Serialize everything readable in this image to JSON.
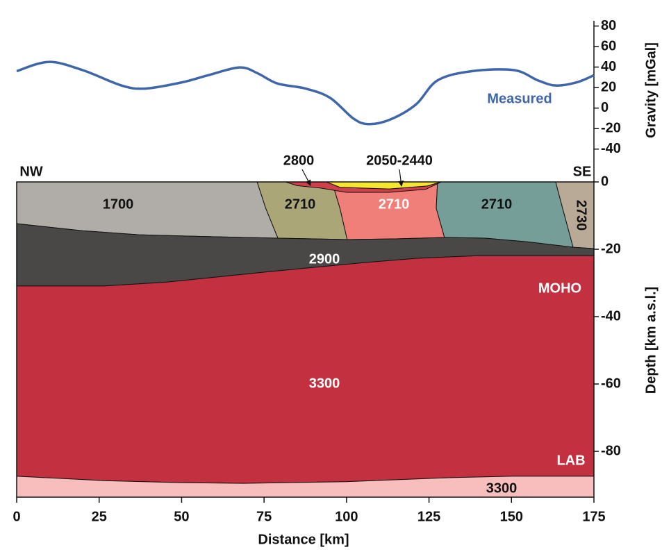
{
  "chart_data": [
    {
      "type": "line",
      "ylabel": "Gravity [mGal]",
      "xlim": [
        0,
        175
      ],
      "ylim": [
        -72,
        102
      ],
      "yticks": [
        80,
        60,
        40,
        20,
        0,
        -20,
        -40
      ],
      "x": [
        0,
        9.7,
        20,
        31.8,
        39,
        50,
        58,
        67.6,
        73,
        79,
        87.6,
        95,
        102,
        106.5,
        113,
        121,
        127.6,
        138,
        150.8,
        158,
        163.4,
        169.7,
        175
      ],
      "series": [
        {
          "name": "Measured",
          "color": "#3f66a8",
          "values": [
            36,
            45,
            37,
            22,
            19,
            25,
            32,
            39.6,
            34,
            24,
            19,
            10,
            -10,
            -15.6,
            -11.5,
            3.4,
            27,
            36,
            37,
            27,
            22,
            25,
            32
          ]
        }
      ]
    },
    {
      "type": "section",
      "xlabel": "Distance [km]",
      "ylabel": "Depth [km a.s.l.]",
      "xlim": [
        0,
        175
      ],
      "xticks": [
        0,
        25,
        50,
        75,
        100,
        125,
        150,
        175
      ],
      "ylim": [
        -93.6,
        0
      ],
      "yticks": [
        0,
        -20,
        -40,
        -60,
        -80
      ],
      "annotations": [
        "NW",
        "SE",
        "MOHO",
        "LAB"
      ],
      "bodies": [
        {
          "label": "1700",
          "color": "#b0aca8",
          "label_color": "#111111",
          "x": [
            0,
            72.9,
            75.5,
            79.2,
            60,
            37,
            20,
            0
          ],
          "y": [
            0,
            0,
            -7.8,
            -16.7,
            -16.3,
            -15.7,
            -14.5,
            -12.4
          ]
        },
        {
          "label": "2710",
          "color": "#aaa678",
          "label_color": "#111111",
          "x": [
            72.9,
            95.6,
            98,
            100.2,
            79.2,
            75.5
          ],
          "y": [
            0,
            0,
            -7.8,
            -17.1,
            -16.7,
            -7.8
          ]
        },
        {
          "label": "2710",
          "color": "#f07e79",
          "label_color": "#ffffff",
          "x": [
            95.6,
            127.6,
            127.2,
            129.7,
            115,
            100.2,
            98
          ],
          "y": [
            0,
            0,
            -7.8,
            -16.5,
            -16.9,
            -17.1,
            -7.8
          ]
        },
        {
          "label": "2710",
          "color": "#769e98",
          "label_color": "#111111",
          "x": [
            127.6,
            163.4,
            165.5,
            168.7,
            155,
            142,
            129.7,
            127.2
          ],
          "y": [
            0,
            0,
            -7.8,
            -19.4,
            -17.8,
            -16.7,
            -16.5,
            -7.8
          ]
        },
        {
          "label": "2730",
          "color": "#b9a997",
          "label_color": "#111111",
          "x": [
            163.4,
            175,
            175,
            168.7,
            165.5
          ],
          "y": [
            0,
            0,
            -19.8,
            -19.4,
            -7.8
          ]
        },
        {
          "label": "2900",
          "color": "#4a4846",
          "label_color": "#ffffff",
          "x": [
            0,
            20,
            37,
            60,
            79.2,
            100.2,
            115,
            129.7,
            142,
            155,
            168.7,
            175,
            175,
            140,
            121,
            105,
            89.7,
            75,
            58,
            45,
            26.5,
            0
          ],
          "y": [
            -12.4,
            -14.5,
            -15.7,
            -16.3,
            -16.7,
            -17.1,
            -16.9,
            -16.5,
            -16.7,
            -17.8,
            -19.4,
            -19.8,
            -21.9,
            -21.9,
            -22.7,
            -24,
            -25.4,
            -26.8,
            -28.5,
            -29.8,
            -30.9,
            -30.9
          ]
        },
        {
          "label": "3300",
          "color": "#c33040",
          "label_color": "#ffffff",
          "x": [
            0,
            26.5,
            45,
            58,
            75,
            89.7,
            105,
            121,
            140,
            175,
            175,
            150,
            131.8,
            100,
            68.6,
            50,
            26.5,
            0
          ],
          "y": [
            -30.9,
            -30.9,
            -29.8,
            -28.5,
            -26.8,
            -25.4,
            -24,
            -22.7,
            -21.9,
            -21.9,
            -87.4,
            -87.4,
            -87.8,
            -89,
            -89.5,
            -89.3,
            -88.7,
            -87.4
          ]
        },
        {
          "label": "3300",
          "color": "#f8bebe",
          "label_color": "#111111",
          "x": [
            0,
            26.5,
            50,
            68.6,
            100,
            131.8,
            150,
            175,
            175,
            0
          ],
          "y": [
            -87.4,
            -88.7,
            -89.3,
            -89.5,
            -89,
            -87.8,
            -87.4,
            -87.4,
            -93.6,
            -93.6
          ]
        },
        {
          "label": "2800",
          "color": "#d0404c",
          "label_color": "#111111",
          "x": [
            81.5,
            93.9,
            98,
            112.9,
            124.4,
            128.7,
            124,
            112.9,
            100,
            92,
            85
          ],
          "y": [
            0,
            0,
            -1.6,
            -2.1,
            -1.2,
            0,
            -2.2,
            -3.1,
            -3.1,
            -1.8,
            -1.1
          ]
        },
        {
          "label": "2050-2440",
          "color": "#f5e62e",
          "label_color": "#111111",
          "x": [
            93.9,
            128.7,
            124.4,
            112.9,
            98
          ],
          "y": [
            0,
            0,
            -1.2,
            -2.1,
            -1.6
          ]
        }
      ]
    }
  ]
}
